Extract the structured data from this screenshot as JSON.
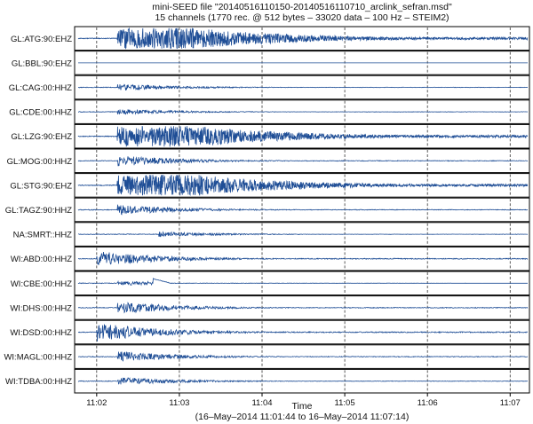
{
  "chart_data": {
    "type": "line",
    "title": "mini-SEED file \"20140516110150-20140516110710_arclink_sefran.msd\"",
    "subtitle": "15 channels (1770 rec. @ 512 bytes – 33020 data – 100 Hz – STEIM2)",
    "xlabel": "Time",
    "xrange_label": "(16–May–2014 11:01:44 to 16–May–2014 11:07:14)",
    "xlim": [
      "11:01:44",
      "11:07:14"
    ],
    "x_ticks": [
      "11:02",
      "11:03",
      "11:04",
      "11:05",
      "11:06",
      "11:07"
    ],
    "grid": true,
    "series": [
      {
        "name": "GL:ATG:90:EHZ",
        "onset": "11:02:15",
        "peak_amp": 1.0,
        "style": "saturated"
      },
      {
        "name": "GL:BBL:90:EHZ",
        "onset": null,
        "peak_amp": 0.0,
        "style": "flat"
      },
      {
        "name": "GL:CAG:00:HHZ",
        "onset": "11:02:15",
        "peak_amp": 0.35,
        "style": "decay"
      },
      {
        "name": "GL:CDE:00:HHZ",
        "onset": "11:02:15",
        "peak_amp": 0.3,
        "style": "decay"
      },
      {
        "name": "GL:LZG:90:EHZ",
        "onset": "11:02:15",
        "peak_amp": 1.0,
        "style": "saturated"
      },
      {
        "name": "GL:MOG:00:HHZ",
        "onset": "11:02:15",
        "peak_amp": 0.55,
        "style": "decay"
      },
      {
        "name": "GL:STG:90:EHZ",
        "onset": "11:02:15",
        "peak_amp": 1.0,
        "style": "saturated"
      },
      {
        "name": "GL:TAGZ:90:HHZ",
        "onset": "11:02:15",
        "peak_amp": 0.5,
        "style": "decay"
      },
      {
        "name": "NA:SMRT::HHZ",
        "onset": "11:02:45",
        "peak_amp": 0.25,
        "style": "decay"
      },
      {
        "name": "WI:ABD:00:HHZ",
        "onset": "11:02:00",
        "peak_amp": 0.75,
        "style": "decay"
      },
      {
        "name": "WI:CBE:00:HHZ",
        "onset": "11:02:15",
        "peak_amp": 0.5,
        "style": "step"
      },
      {
        "name": "WI:DHS:00:HHZ",
        "onset": "11:02:15",
        "peak_amp": 0.6,
        "style": "decay"
      },
      {
        "name": "WI:DSD:00:HHZ",
        "onset": "11:02:00",
        "peak_amp": 0.9,
        "style": "decay"
      },
      {
        "name": "WI:MAGL:00:HHZ",
        "onset": "11:02:15",
        "peak_amp": 0.55,
        "style": "decay"
      },
      {
        "name": "WI:TDBA:00:HHZ",
        "onset": "11:02:15",
        "peak_amp": 0.4,
        "style": "decay"
      }
    ],
    "colors": {
      "trace": "#1f4e96",
      "frame": "#000000",
      "grid": "#333333"
    }
  }
}
